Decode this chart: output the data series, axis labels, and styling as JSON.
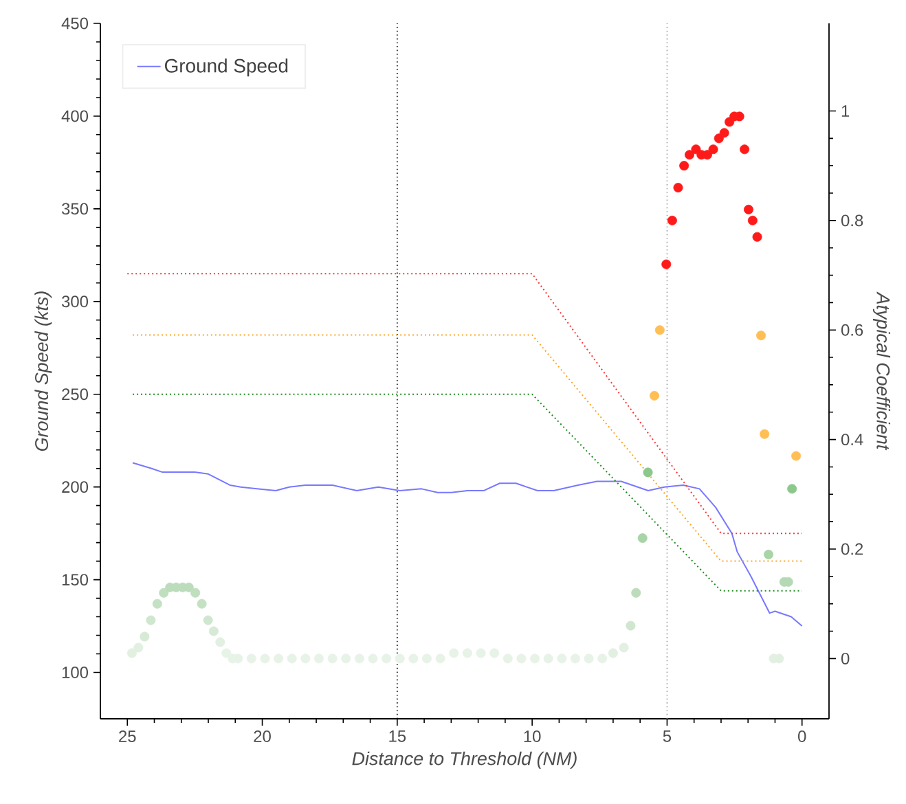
{
  "chart_data": {
    "type": "line",
    "xlabel": "Distance to Threshold (NM)",
    "ylabel": "Ground Speed (kts)",
    "y2label": "Atypical Coefficient",
    "xlim": [
      26,
      -1
    ],
    "xticks": [
      25,
      20,
      15,
      10,
      5,
      0
    ],
    "ylim": [
      75,
      450
    ],
    "yticks": [
      100,
      150,
      200,
      250,
      300,
      350,
      400,
      450
    ],
    "y2lim": [
      -0.11,
      1.16
    ],
    "y2ticks": [
      0,
      0.2,
      0.4,
      0.6,
      0.8,
      1
    ],
    "legend": "top left",
    "ref_lines": [
      {
        "axis": "x",
        "value": 15,
        "color": "#000000",
        "line_style": "dotted"
      },
      {
        "axis": "x",
        "value": 5,
        "color": "#999999",
        "line_style": "dotted"
      }
    ],
    "series": [
      {
        "name": "Ground Speed",
        "color": "#7878ff",
        "line_style": "solid",
        "x": [
          24.8,
          24.1,
          23.7,
          22.5,
          22.0,
          21.2,
          20.8,
          20.2,
          19.5,
          19.0,
          18.4,
          17.4,
          16.5,
          15.7,
          14.9,
          14.1,
          13.5,
          13.0,
          12.4,
          11.8,
          11.2,
          10.6,
          9.8,
          9.2,
          8.3,
          7.6,
          6.7,
          5.7,
          5.1,
          4.4,
          3.8,
          3.2,
          2.6,
          2.4,
          1.9,
          1.2,
          1.0,
          0.4,
          0.0
        ],
        "values": [
          213,
          210,
          208,
          208,
          207,
          201,
          200,
          199,
          198,
          200,
          201,
          201,
          198,
          200,
          198,
          199,
          197,
          197,
          198,
          198,
          202,
          202,
          198,
          198,
          201,
          203,
          203,
          198,
          200,
          201,
          199,
          189,
          175,
          165,
          152,
          132,
          133,
          130,
          125
        ]
      },
      {
        "color": "#ff3333",
        "line_style": "dotted",
        "x": [
          25,
          10,
          3,
          0
        ],
        "values": [
          315,
          315,
          175,
          175
        ]
      },
      {
        "color": "#ffa620",
        "line_style": "dotted",
        "x": [
          24.8,
          10,
          3,
          0
        ],
        "values": [
          282,
          282,
          160,
          160
        ]
      },
      {
        "color": "#1e8c1e",
        "line_style": "dotted",
        "x": [
          24.8,
          10,
          3,
          0
        ],
        "values": [
          250,
          250,
          144,
          144
        ]
      },
      {
        "type": "scatter",
        "axis": "y2",
        "marker": "circle",
        "color": "#ff1a1a",
        "x": [
          5.03,
          4.81,
          4.59,
          4.37,
          4.17,
          3.93,
          3.73,
          3.51,
          3.29,
          3.08,
          2.88,
          2.69,
          2.51,
          2.32,
          2.13,
          1.98,
          1.83,
          1.66
        ],
        "values": [
          0.72,
          0.8,
          0.86,
          0.9,
          0.92,
          0.93,
          0.92,
          0.92,
          0.93,
          0.95,
          0.96,
          0.98,
          0.99,
          0.99,
          0.93,
          0.82,
          0.8,
          0.77
        ]
      },
      {
        "type": "scatter",
        "axis": "y2",
        "marker": "circle",
        "color": "#ffbf55",
        "x": [
          5.27,
          5.47,
          1.52,
          1.39,
          0.22
        ],
        "values": [
          0.6,
          0.48,
          0.59,
          0.41,
          0.37
        ]
      },
      {
        "type": "scatter",
        "axis": "y2",
        "marker": "circle",
        "x": [
          24.83,
          24.59,
          24.36,
          24.13,
          23.89,
          23.65,
          23.42,
          23.19,
          22.95,
          22.72,
          22.48,
          22.24,
          22.01,
          21.8,
          21.56,
          21.33,
          21.1,
          20.9,
          20.4,
          19.9,
          19.4,
          18.9,
          18.4,
          17.9,
          17.4,
          16.9,
          16.4,
          15.9,
          15.4,
          14.9,
          14.4,
          13.9,
          13.4,
          12.9,
          12.4,
          11.9,
          11.4,
          10.9,
          10.4,
          9.9,
          9.4,
          8.9,
          8.4,
          7.9,
          7.4,
          7.0,
          6.6,
          6.35,
          6.15,
          5.91,
          5.71,
          1.24,
          1.05,
          0.85,
          0.66,
          0.51,
          0.37
        ],
        "values": [
          0.01,
          0.02,
          0.04,
          0.07,
          0.1,
          0.12,
          0.13,
          0.13,
          0.13,
          0.13,
          0.12,
          0.1,
          0.07,
          0.05,
          0.03,
          0.01,
          0,
          0,
          0,
          0,
          0,
          0,
          0,
          0,
          0,
          0,
          0,
          0,
          0,
          0,
          0,
          0,
          0,
          0.01,
          0.01,
          0.01,
          0.01,
          0,
          0,
          0,
          0,
          0,
          0,
          0,
          0,
          0.01,
          0.02,
          0.06,
          0.12,
          0.22,
          0.34,
          0.19,
          0,
          0,
          0.14,
          0.14,
          0.31
        ],
        "colors": [
          "#e2f0e2",
          "#e2f0e2",
          "#d6ead6",
          "#cfe6cf",
          "#c4e1c4",
          "#bfdfbf",
          "#bcdcbc",
          "#bcdcbc",
          "#bcdcbc",
          "#bcdcbc",
          "#bfdfbf",
          "#c4e1c4",
          "#cfe6cf",
          "#d6ead6",
          "#e2f0e2",
          "#e8f3e8",
          "#e8f3e8",
          "#e8f3e8",
          "#e8f3e8",
          "#e8f3e8",
          "#e8f3e8",
          "#e8f3e8",
          "#e8f3e8",
          "#e8f3e8",
          "#e8f3e8",
          "#e8f3e8",
          "#e8f3e8",
          "#e8f3e8",
          "#e8f3e8",
          "#e8f3e8",
          "#e8f3e8",
          "#e8f3e8",
          "#e8f3e8",
          "#e8f3e8",
          "#e8f3e8",
          "#e8f3e8",
          "#e8f3e8",
          "#e8f3e8",
          "#e8f3e8",
          "#e8f3e8",
          "#e8f3e8",
          "#e8f3e8",
          "#e8f3e8",
          "#e8f3e8",
          "#e8f3e8",
          "#e2f0e2",
          "#e2f0e2",
          "#cfe6cf",
          "#bcdcbc",
          "#a8d4a8",
          "#8cc88c",
          "#a8d4a8",
          "#e2f0e2",
          "#e2f0e2",
          "#b5d9b5",
          "#b5d9b5",
          "#8cc88c"
        ]
      }
    ]
  }
}
